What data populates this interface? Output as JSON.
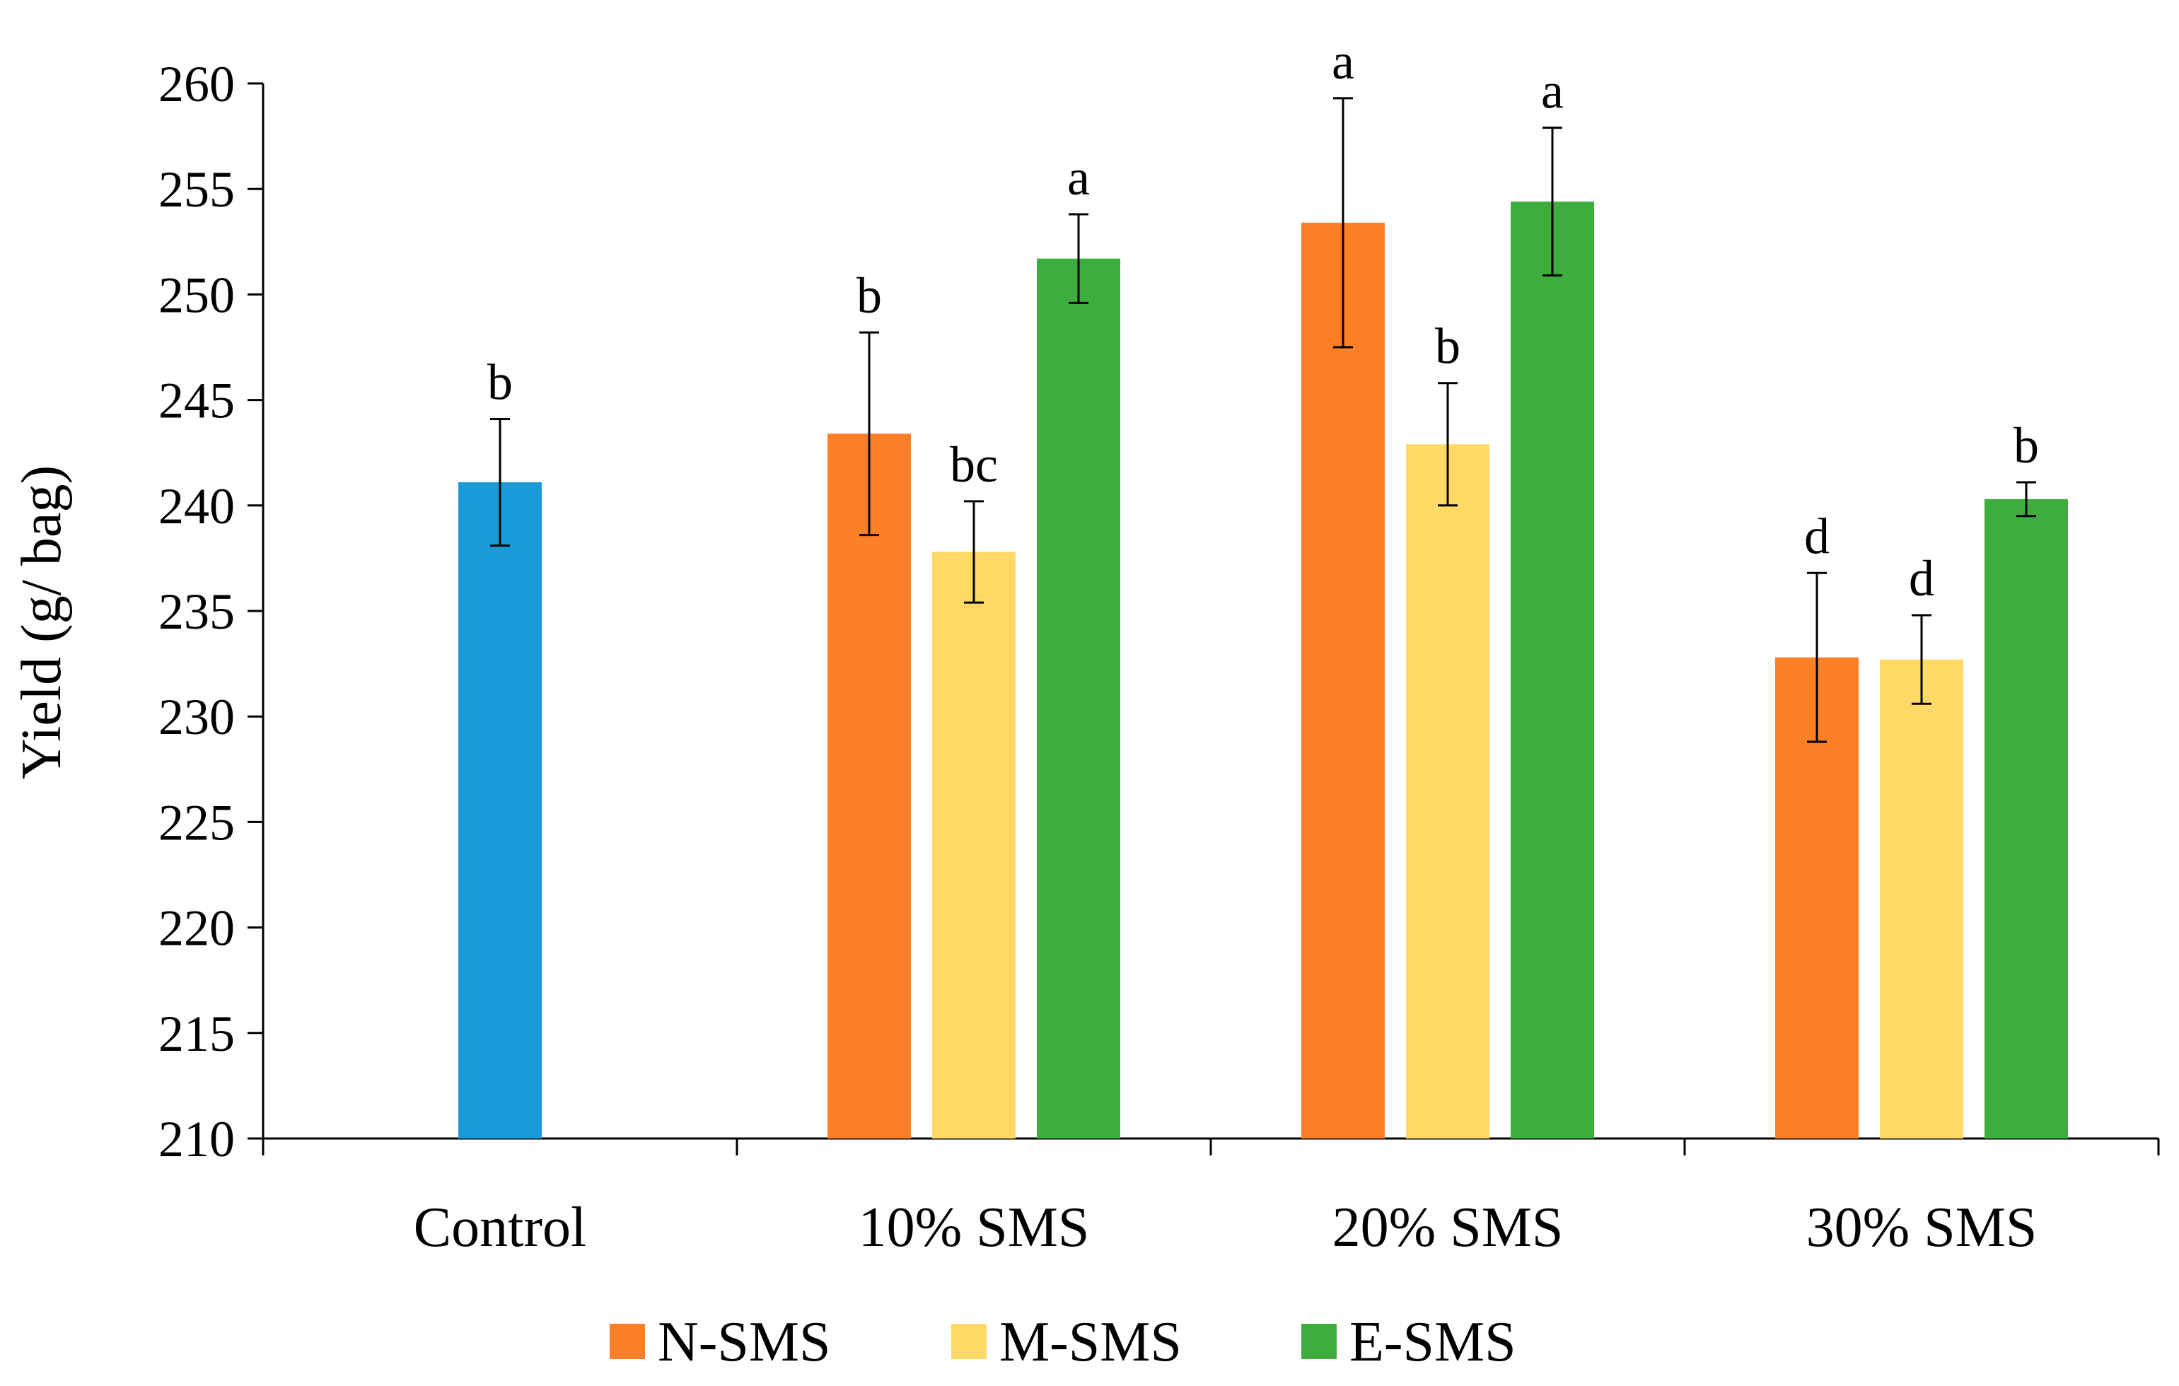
{
  "chart_data": {
    "type": "bar",
    "title": "",
    "xlabel": "",
    "ylabel": "Yield (g/ bag)",
    "ylim": [
      210,
      260
    ],
    "yticks": [
      210,
      215,
      220,
      225,
      230,
      235,
      240,
      245,
      250,
      255,
      260
    ],
    "categories": [
      "Control",
      "10% SMS",
      "20% SMS",
      "30% SMS"
    ],
    "control": {
      "value": 241.1,
      "error": 3.0,
      "letter": "b",
      "color": "#1A9BD7"
    },
    "series": [
      {
        "name": "N-SMS",
        "color": "#FF7F27",
        "values": [
          null,
          243.4,
          253.4,
          232.8
        ],
        "errors": [
          null,
          4.8,
          5.9,
          4.0
        ],
        "letters": [
          "",
          "b",
          "a",
          "d"
        ]
      },
      {
        "name": "M-SMS",
        "color": "#FFD966",
        "values": [
          null,
          237.8,
          242.9,
          232.7
        ],
        "errors": [
          null,
          2.4,
          2.9,
          2.1
        ],
        "letters": [
          "",
          "bc",
          "b",
          "d"
        ]
      },
      {
        "name": "E-SMS",
        "color": "#3DAE3D",
        "values": [
          null,
          251.7,
          254.4,
          240.3
        ],
        "errors": [
          null,
          2.1,
          3.5,
          0.8
        ],
        "letters": [
          "",
          "a",
          "a",
          "b"
        ]
      }
    ],
    "legend": {
      "position": "bottom-center",
      "entries": [
        "N-SMS",
        "M-SMS",
        "E-SMS"
      ]
    },
    "grid": false
  }
}
